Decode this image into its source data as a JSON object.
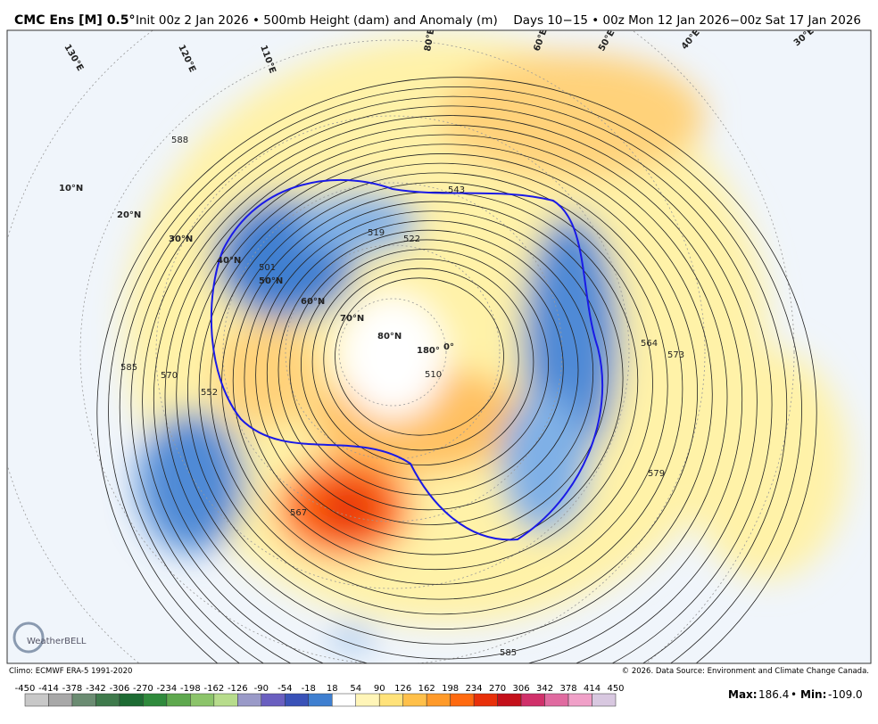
{
  "header": {
    "model": "CMC Ens [M] 0.5°",
    "title": "Init 00z 2 Jan 2026 • 500mb Height (dam) and Anomaly (m)",
    "valid": "Days 10−15 • 00z Mon 12 Jan 2026−00z Sat 17 Jan 2026"
  },
  "map": {
    "lat_labels": [
      "10°N",
      "20°N",
      "30°N",
      "40°N",
      "50°N",
      "60°N",
      "70°N",
      "80°N",
      "180°",
      "0°"
    ],
    "lon_labels": [
      "130°E",
      "120°E",
      "110°E",
      "80°E",
      "60°E",
      "50°E",
      "40°E",
      "30°E"
    ],
    "contour_labels": [
      "588",
      "585",
      "570",
      "552",
      "543",
      "519",
      "522",
      "510",
      "567",
      "579",
      "573",
      "564",
      "585",
      "501"
    ],
    "logo": "WeatherBELL"
  },
  "footer": {
    "climo": "Climo: ECMWF ERA-5 1991-2020",
    "source": "© 2026. Data Source: Environment and Climate Change Canada.",
    "max_label": "Max:",
    "max": "186.4",
    "sep": "•",
    "min_label": "Min:",
    "min": "-109.0"
  },
  "colorbar": {
    "labels": [
      -450,
      -414,
      -378,
      -342,
      -306,
      -270,
      -234,
      -198,
      -162,
      -126,
      -90,
      -54,
      -18,
      18,
      54,
      90,
      126,
      162,
      198,
      234,
      270,
      306,
      342,
      378,
      414,
      450
    ],
    "colors": [
      "#c8c8c8",
      "#a8a8a8",
      "#6b8c72",
      "#3f7a4c",
      "#1d6b33",
      "#2f8a3c",
      "#5ea84e",
      "#8cc46a",
      "#b7dc8c",
      "#9a9ac8",
      "#6a5fc0",
      "#3a52b8",
      "#3f7fd0",
      "#ffffff",
      "#fff5b8",
      "#ffe27a",
      "#ffc04a",
      "#ff9a2a",
      "#ff6a10",
      "#e8300a",
      "#c4101a",
      "#d0306a",
      "#e06aa0",
      "#f0a0c8",
      "#d8c8e0"
    ]
  }
}
